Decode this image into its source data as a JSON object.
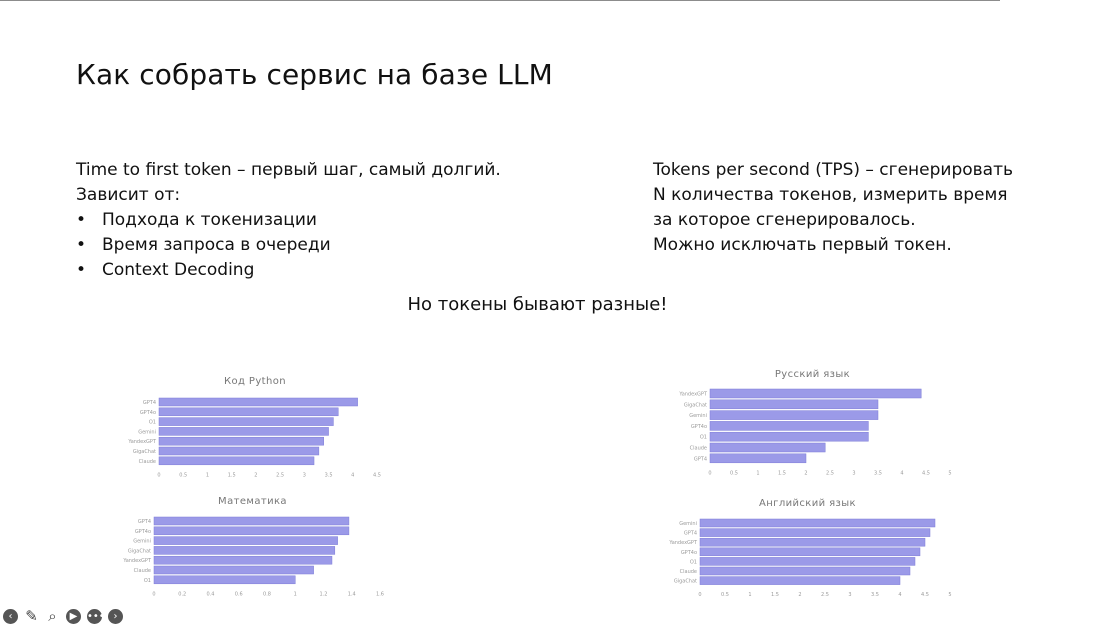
{
  "slide": {
    "title": "Как собрать сервис на базе LLM",
    "left": {
      "heading_bold": "Time to first token",
      "heading_rest": " – первый шаг, самый долгий.",
      "intro": "Зависит от:",
      "bullet_symbol": "•",
      "bullets": [
        "Подхода к токенизации",
        "Время запроса в очереди",
        "Context Decoding"
      ]
    },
    "right": {
      "heading_bold": "Tokens per second (TPS)",
      "heading_rest": " – сгенерировать",
      "lines": [
        "N количества токенов, измерить время",
        "за которое сгенерировалось.",
        "Можно исключать первый токен."
      ]
    },
    "center_note": "Но токены бывают разные!"
  },
  "chart_data": [
    {
      "type": "bar",
      "orientation": "horizontal",
      "title": "Код Python",
      "categories": [
        "GPT4",
        "GPT4o",
        "O1",
        "Gemini",
        "YandexGPT",
        "GigaChat",
        "Claude"
      ],
      "values": [
        4.1,
        3.7,
        3.6,
        3.5,
        3.4,
        3.3,
        3.2
      ],
      "xlim": [
        0,
        4.5
      ],
      "ticks": [
        "0",
        "0.5",
        "1",
        "1.5",
        "2",
        "2.5",
        "3",
        "3.5",
        "4",
        "4.5"
      ],
      "grid": false
    },
    {
      "type": "bar",
      "orientation": "horizontal",
      "title": "Математика",
      "categories": [
        "GPT4",
        "GPT4o",
        "Gemini",
        "GigaChat",
        "YandexGPT",
        "Claude",
        "O1"
      ],
      "values": [
        1.38,
        1.38,
        1.3,
        1.28,
        1.26,
        1.13,
        1.0
      ],
      "xlim": [
        0,
        1.6
      ],
      "ticks": [
        "0",
        "0.2",
        "0.4",
        "0.6",
        "0.8",
        "1",
        "1.2",
        "1.4",
        "1.6"
      ],
      "grid": false
    },
    {
      "type": "bar",
      "orientation": "horizontal",
      "title": "Русский язык",
      "categories": [
        "YandexGPT",
        "GigaChat",
        "Gemini",
        "GPT4o",
        "O1",
        "Claude",
        "GPT4"
      ],
      "values": [
        4.4,
        3.5,
        3.5,
        3.3,
        3.3,
        2.4,
        2.0
      ],
      "xlim": [
        0,
        5
      ],
      "ticks": [
        "0",
        "0.5",
        "1",
        "1.5",
        "2",
        "2.5",
        "3",
        "3.5",
        "4",
        "4.5",
        "5"
      ],
      "grid": false
    },
    {
      "type": "bar",
      "orientation": "horizontal",
      "title": "Английский язык",
      "categories": [
        "Gemini",
        "GPT4",
        "YandexGPT",
        "GPT4o",
        "O1",
        "Claude",
        "GigaChat"
      ],
      "values": [
        4.7,
        4.6,
        4.5,
        4.4,
        4.3,
        4.2,
        4.0
      ],
      "xlim": [
        0,
        5
      ],
      "ticks": [
        "0",
        "0.5",
        "1",
        "1.5",
        "2",
        "2.5",
        "3",
        "3.5",
        "4",
        "4.5",
        "5"
      ],
      "grid": false
    }
  ],
  "colors": {
    "bar_fill": "#9b9ae8",
    "bar_stroke": "#7e7dd8",
    "axis_text": "#9a9a9a",
    "title_text": "#777777"
  },
  "toolbar": {
    "icons": [
      "back-arrow-icon",
      "pencil-icon",
      "search-icon",
      "video-icon",
      "more-icon",
      "forward-arrow-icon"
    ],
    "glyphs": [
      "‹",
      "✎",
      "⌕",
      "▶",
      "•••",
      "›"
    ]
  }
}
